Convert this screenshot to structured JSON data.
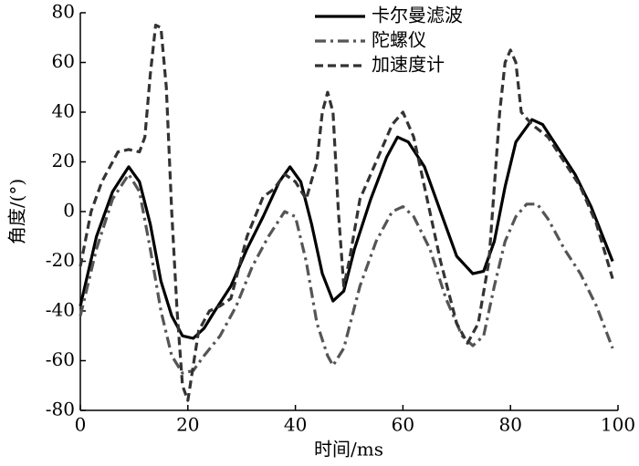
{
  "chart_data": {
    "type": "line",
    "xlabel": "时间/ms",
    "ylabel": "角度/(°)",
    "xlim": [
      0,
      100
    ],
    "xticks": [
      0,
      20,
      40,
      60,
      80,
      100
    ],
    "ylim": [
      -80,
      80
    ],
    "yticks": [
      -80,
      -60,
      -40,
      -20,
      0,
      20,
      40,
      60,
      80
    ],
    "legend": "upper right",
    "series": [
      {
        "name": "卡尔曼滤波",
        "color": "#000000",
        "dash": "solid",
        "x": [
          0,
          3,
          6,
          9,
          11,
          13,
          15,
          17,
          19,
          21,
          23,
          25,
          28,
          31,
          34,
          37,
          39,
          41,
          43,
          45,
          47,
          49,
          51,
          54,
          57,
          59,
          61,
          64,
          67,
          70,
          73,
          75,
          77,
          79,
          81,
          84,
          86,
          89,
          92,
          95,
          99
        ],
        "values": [
          -38,
          -10,
          8,
          18,
          12,
          -5,
          -28,
          -42,
          -50,
          -51,
          -47,
          -40,
          -30,
          -15,
          -2,
          12,
          18,
          12,
          -5,
          -25,
          -36,
          -32,
          -15,
          5,
          22,
          30,
          28,
          18,
          0,
          -18,
          -25,
          -24,
          -12,
          10,
          28,
          37,
          35,
          25,
          15,
          2,
          -20
        ]
      },
      {
        "name": "陀螺仪",
        "color": "#555555",
        "dash": "dashdot",
        "x": [
          0,
          3,
          6,
          9,
          11,
          13,
          15,
          17,
          19,
          21,
          23,
          26,
          29,
          32,
          35,
          38,
          40,
          42,
          44,
          46,
          47,
          49,
          52,
          55,
          58,
          60,
          62,
          65,
          68,
          71,
          73,
          75,
          77,
          79,
          81,
          83,
          85,
          87,
          90,
          93,
          96,
          99
        ],
        "values": [
          -42,
          -15,
          5,
          15,
          8,
          -15,
          -40,
          -58,
          -65,
          -64,
          -58,
          -50,
          -38,
          -22,
          -10,
          0,
          -2,
          -20,
          -45,
          -58,
          -62,
          -55,
          -30,
          -12,
          0,
          2,
          -2,
          -15,
          -35,
          -50,
          -54,
          -50,
          -30,
          -12,
          -2,
          3,
          3,
          -3,
          -15,
          -25,
          -38,
          -55
        ]
      },
      {
        "name": "加速度计",
        "color": "#333333",
        "dash": "dashed",
        "x": [
          0,
          2,
          4,
          7,
          9,
          11,
          12,
          13,
          14,
          15,
          16,
          17,
          18,
          19,
          20,
          21,
          22,
          24,
          26,
          28,
          31,
          34,
          36,
          38,
          40,
          42,
          44,
          45,
          46,
          47,
          48,
          49,
          50,
          52,
          55,
          58,
          60,
          62,
          64,
          67,
          70,
          72,
          74,
          76,
          78,
          79,
          80,
          81,
          82,
          84,
          87,
          90,
          93,
          96,
          99
        ],
        "values": [
          -22,
          0,
          12,
          24,
          25,
          24,
          30,
          55,
          75,
          74,
          50,
          0,
          -40,
          -70,
          -76,
          -62,
          -48,
          -40,
          -38,
          -35,
          -10,
          6,
          9,
          15,
          12,
          5,
          20,
          40,
          48,
          40,
          0,
          -30,
          -20,
          5,
          20,
          35,
          40,
          30,
          10,
          -20,
          -45,
          -53,
          -45,
          -20,
          40,
          60,
          65,
          60,
          40,
          35,
          30,
          20,
          10,
          -5,
          -27
        ]
      }
    ]
  }
}
